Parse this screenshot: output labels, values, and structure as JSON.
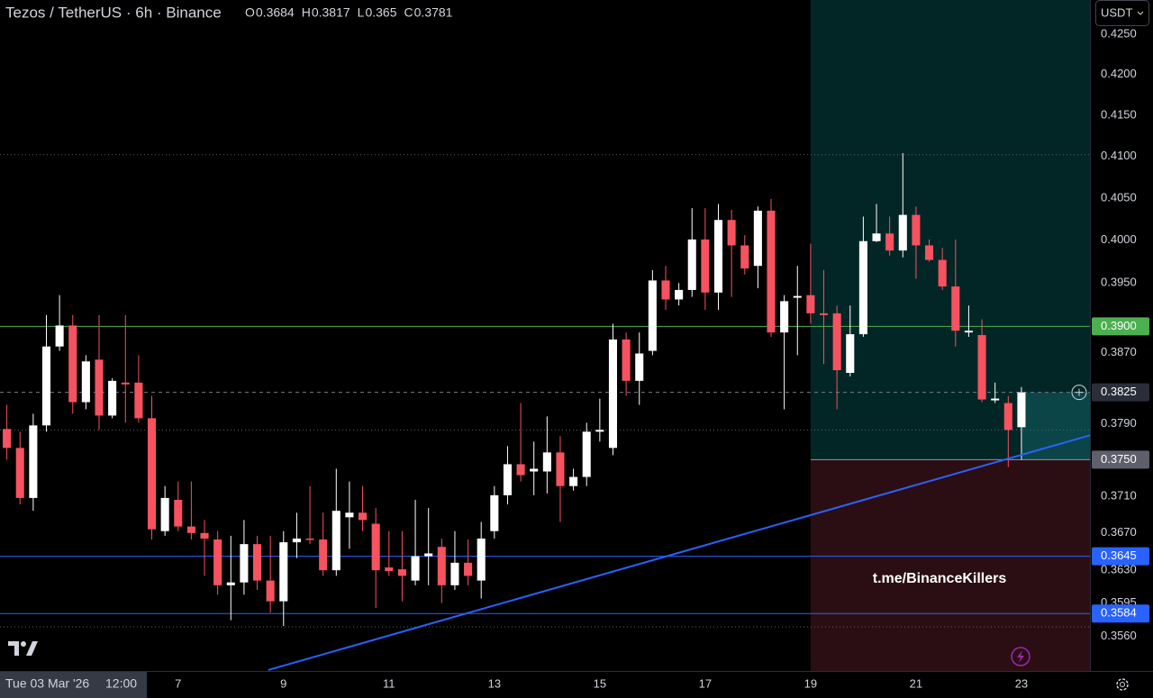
{
  "chart_data": {
    "type": "candlestick",
    "title": "Tezos / TetherUS · 6h · Binance",
    "ohlc": [
      {
        "label": "O",
        "value": 0.3684
      },
      {
        "label": "H",
        "value": 0.3817
      },
      {
        "label": "L",
        "value": 0.365
      },
      {
        "label": "C",
        "value": 0.3781
      }
    ],
    "currency": "USDT",
    "watermark": "t.me/BinanceKillers",
    "crosshair_time": [
      "Tue 03 Mar '26",
      "12:00"
    ],
    "log": true,
    "up_color": "#ffffff",
    "down_color": "#f7525f",
    "xlim": [
      3.62,
      24.3
    ],
    "xticks": [
      7,
      9,
      11,
      13,
      15,
      17,
      19,
      21,
      23
    ],
    "ylim": [
      0.3524,
      0.4293
    ],
    "yticks": [
      {
        "value": 0.425,
        "label": "0.4250"
      },
      {
        "value": 0.42,
        "label": "0.4200"
      },
      {
        "value": 0.415,
        "label": "0.4150"
      },
      {
        "value": 0.41,
        "label": "0.4100"
      },
      {
        "value": 0.405,
        "label": "0.4050"
      },
      {
        "value": 0.4,
        "label": "0.4000"
      },
      {
        "value": 0.395,
        "label": "0.3950"
      },
      {
        "value": 0.387,
        "label": "0.3870"
      },
      {
        "value": 0.379,
        "label": "0.3790"
      },
      {
        "value": 0.371,
        "label": "0.3710"
      },
      {
        "value": 0.367,
        "label": "0.3670"
      },
      {
        "value": 0.363,
        "label": "0.3630"
      },
      {
        "value": 0.3595,
        "label": "0.3595"
      },
      {
        "value": 0.356,
        "label": "0.3560"
      }
    ],
    "x": [
      3.75,
      4,
      4.25,
      4.5,
      4.75,
      5,
      5.25,
      5.5,
      5.75,
      6,
      6.25,
      6.5,
      6.75,
      7,
      7.25,
      7.5,
      7.75,
      8,
      8.25,
      8.5,
      8.75,
      9,
      9.25,
      9.5,
      9.75,
      10,
      10.25,
      10.5,
      10.75,
      11,
      11.25,
      11.5,
      11.75,
      12,
      12.25,
      12.5,
      12.75,
      13,
      13.25,
      13.5,
      13.75,
      14,
      14.25,
      14.5,
      14.75,
      15,
      15.25,
      15.5,
      15.75,
      16,
      16.25,
      16.5,
      16.75,
      17,
      17.25,
      17.5,
      17.75,
      18,
      18.25,
      18.5,
      18.75,
      19,
      19.25,
      19.5,
      19.75,
      20,
      20.25,
      20.5,
      20.75,
      21,
      21.25,
      21.5,
      21.75,
      22,
      22.25,
      22.5,
      22.75,
      23
    ],
    "open": [
      0.3784,
      0.3763,
      0.3708,
      0.3788,
      0.3877,
      0.3901,
      0.3814,
      0.3862,
      0.3799,
      0.3836,
      0.3836,
      0.3796,
      0.3672,
      0.3706,
      0.3677,
      0.367,
      0.3663,
      0.3614,
      0.3617,
      0.3658,
      0.3619,
      0.3597,
      0.366,
      0.3664,
      0.3663,
      0.363,
      0.3687,
      0.3692,
      0.368,
      0.3633,
      0.3631,
      0.3619,
      0.3645,
      0.3655,
      0.3614,
      0.3638,
      0.3619,
      0.3672,
      0.3711,
      0.3745,
      0.3737,
      0.3737,
      0.3758,
      0.3721,
      0.3731,
      0.3781,
      0.3763,
      0.3885,
      0.3838,
      0.3872,
      0.3953,
      0.3931,
      0.3942,
      0.4001,
      0.3939,
      0.4024,
      0.3994,
      0.397,
      0.4035,
      0.3893,
      0.3933,
      0.3936,
      0.3915,
      0.3915,
      0.3847,
      0.3891,
      0.3999,
      0.4008,
      0.3988,
      0.403,
      0.3994,
      0.3977,
      0.3946,
      0.3893,
      0.389,
      0.3816,
      0.3813,
      0.3786
    ],
    "high": [
      0.3811,
      0.3781,
      0.3801,
      0.3913,
      0.3936,
      0.3913,
      0.3867,
      0.3913,
      0.3841,
      0.3913,
      0.3867,
      0.3821,
      0.3721,
      0.3726,
      0.3726,
      0.3684,
      0.3672,
      0.3667,
      0.3684,
      0.3667,
      0.3667,
      0.3672,
      0.3692,
      0.3721,
      0.3692,
      0.374,
      0.3726,
      0.3721,
      0.3697,
      0.3672,
      0.3672,
      0.3706,
      0.3697,
      0.3664,
      0.3672,
      0.3663,
      0.3682,
      0.3721,
      0.3765,
      0.3813,
      0.377,
      0.3798,
      0.3776,
      0.374,
      0.3791,
      0.3818,
      0.3903,
      0.3893,
      0.3893,
      0.3965,
      0.397,
      0.395,
      0.4038,
      0.4038,
      0.4043,
      0.4036,
      0.4006,
      0.404,
      0.4049,
      0.3936,
      0.397,
      0.3996,
      0.3965,
      0.3924,
      0.3924,
      0.4028,
      0.4043,
      0.4028,
      0.4104,
      0.404,
      0.4001,
      0.3991,
      0.4001,
      0.3924,
      0.3908,
      0.3836,
      0.3821,
      0.3831
    ],
    "low": [
      0.375,
      0.3701,
      0.3694,
      0.3781,
      0.3872,
      0.3801,
      0.3806,
      0.3783,
      0.3796,
      0.3791,
      0.3791,
      0.3663,
      0.3667,
      0.3672,
      0.3663,
      0.3624,
      0.3604,
      0.3577,
      0.3604,
      0.3609,
      0.3585,
      0.3571,
      0.3643,
      0.3658,
      0.3624,
      0.3624,
      0.3653,
      0.3672,
      0.359,
      0.3624,
      0.3597,
      0.3614,
      0.3614,
      0.3595,
      0.3609,
      0.3614,
      0.36,
      0.3664,
      0.3701,
      0.3726,
      0.3711,
      0.3713,
      0.3682,
      0.3716,
      0.3721,
      0.377,
      0.3755,
      0.3821,
      0.3811,
      0.3867,
      0.3919,
      0.3924,
      0.3934,
      0.3919,
      0.3919,
      0.3934,
      0.396,
      0.3944,
      0.3888,
      0.3806,
      0.3867,
      0.3903,
      0.3857,
      0.3806,
      0.3843,
      0.3888,
      0.3998,
      0.3982,
      0.398,
      0.3955,
      0.3975,
      0.3942,
      0.3877,
      0.3888,
      0.3814,
      0.3813,
      0.3742,
      0.375
    ],
    "close": [
      0.3763,
      0.3708,
      0.3788,
      0.3877,
      0.3901,
      0.3814,
      0.386,
      0.3799,
      0.3838,
      0.3834,
      0.3796,
      0.3674,
      0.3708,
      0.3677,
      0.367,
      0.3664,
      0.3614,
      0.3617,
      0.3658,
      0.3619,
      0.3597,
      0.366,
      0.3664,
      0.3663,
      0.363,
      0.3694,
      0.3692,
      0.3684,
      0.363,
      0.3629,
      0.3624,
      0.3645,
      0.3648,
      0.3614,
      0.3638,
      0.3624,
      0.3664,
      0.3711,
      0.3745,
      0.3733,
      0.374,
      0.3758,
      0.3721,
      0.3731,
      0.3781,
      0.3783,
      0.3885,
      0.3838,
      0.3869,
      0.3953,
      0.3931,
      0.3942,
      0.4001,
      0.3939,
      0.4024,
      0.3994,
      0.3967,
      0.4035,
      0.3893,
      0.3929,
      0.3935,
      0.3915,
      0.3913,
      0.385,
      0.3891,
      0.3999,
      0.4008,
      0.3988,
      0.403,
      0.3994,
      0.3977,
      0.3946,
      0.3895,
      0.3895,
      0.3817,
      0.3818,
      0.3783,
      0.3825
    ],
    "levels": [
      {
        "value": 0.4102,
        "color": "#5d606b",
        "style": "dotted"
      },
      {
        "value": 0.3783,
        "color": "#5d606b",
        "style": "dotted"
      },
      {
        "value": 0.357,
        "color": "#5d606b",
        "style": "dotted"
      },
      {
        "value": 0.39,
        "color": "#4caf50",
        "style": "solid"
      },
      {
        "value": 0.3825,
        "color": "#787b86",
        "style": "dashed"
      },
      {
        "value": 0.3645,
        "color": "#2962ff",
        "style": "solid"
      },
      {
        "value": 0.3584,
        "color": "#2962ff",
        "style": "solid"
      }
    ],
    "price_labels": [
      {
        "value": 0.39,
        "label": "0.3900",
        "color": "#4caf50"
      },
      {
        "value": 0.3825,
        "label": "0.3825",
        "color": "#2a2e39"
      },
      {
        "value": 0.375,
        "label": "0.3750",
        "color": "#5d606b"
      },
      {
        "value": 0.3645,
        "label": "0.3645",
        "color": "#2962ff"
      },
      {
        "value": 0.3584,
        "label": "0.3584",
        "color": "#2962ff"
      }
    ],
    "position": {
      "start": 19,
      "entry": 0.375
    },
    "trendline": {
      "x": [
        8.71,
        24.3
      ],
      "y": [
        0.3525,
        0.3777
      ],
      "color": "#2962ff"
    }
  }
}
